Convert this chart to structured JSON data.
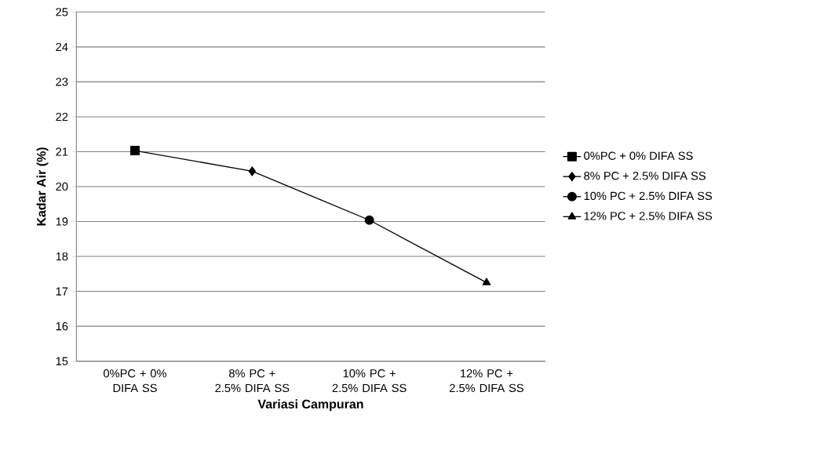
{
  "chart_data": {
    "type": "line",
    "xlabel": "Variasi Campuran",
    "ylabel": "Kadar Air (%)",
    "categories": [
      "0%PC + 0% DIFA SS",
      "8% PC + 2.5% DIFA SS",
      "10% PC + 2.5% DIFA SS",
      "12% PC + 2.5% DIFA SS"
    ],
    "series": [
      {
        "color": "#000000",
        "marker": "none",
        "values": [
          21.03,
          20.44,
          19.04,
          17.25
        ]
      },
      {
        "name": "0%PC + 0% DIFA SS",
        "color": "#000000",
        "marker": "square",
        "values": [
          21.03,
          null,
          null,
          null
        ]
      },
      {
        "name": "8% PC + 2.5% DIFA SS",
        "color": "#000000",
        "marker": "diamond",
        "values": [
          null,
          20.44,
          null,
          null
        ]
      },
      {
        "name": "10% PC + 2.5% DIFA SS",
        "color": "#000000",
        "marker": "circle",
        "values": [
          null,
          null,
          19.04,
          null
        ]
      },
      {
        "name": "12% PC + 2.5% DIFA SS",
        "color": "#000000",
        "marker": "triangle",
        "values": [
          null,
          null,
          null,
          17.25
        ]
      }
    ],
    "ylim": [
      15,
      25
    ],
    "yticks": [
      15,
      16,
      17,
      18,
      19,
      20,
      21,
      22,
      23,
      24,
      25
    ],
    "grid": "y",
    "legend": "right",
    "line_style": "solid"
  }
}
